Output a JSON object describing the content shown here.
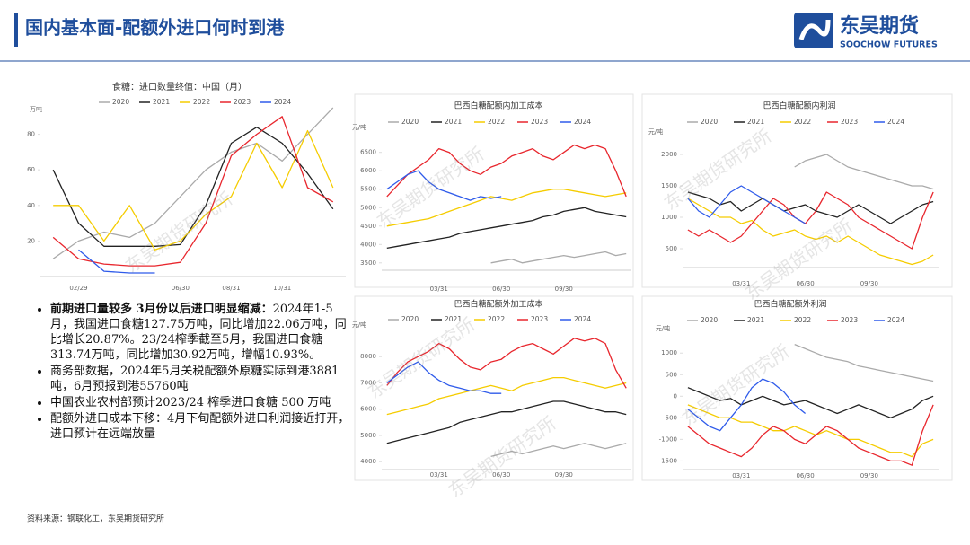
{
  "header": {
    "title": "国内基本面-配额外进口何时到港",
    "logo_cn": "东吴期货",
    "logo_en": "SOOCHOW FUTURES"
  },
  "bullets": [
    {
      "bold": "前期进口量较多 3月份以后进口明显缩减：",
      "text": "2024年1-5月，我国进口食糖127.75万吨，同比增加22.06万吨，同比增长20.87%。23/24榨季截至5月，我国进口食糖313.74万吨，同比增加30.92万吨，增幅10.93%。"
    },
    {
      "text": "商务部数据，2024年5月关税配额外原糖实际到港3881吨，6月预报到港55760吨"
    },
    {
      "text": "中国农业农村部预计2023/24 榨季进口食糖 500 万吨"
    },
    {
      "text": "配额外进口成本下移：4月下旬配额外进口利润接近打开，进口预计在远端放量"
    }
  ],
  "source": "资料来源：钢联化工，东吴期货研究所",
  "watermark": "东吴期货研究所",
  "chart_data": [
    {
      "type": "line",
      "title": "食糖：进口数量终值：中国（月）",
      "y_label": "万吨",
      "grid": false,
      "categories": [
        null,
        "02/29",
        null,
        null,
        null,
        "06/30",
        null,
        "08/31",
        null,
        "10/31",
        null,
        null
      ],
      "ylim": [
        0,
        100
      ],
      "yticks": [
        20,
        40,
        60,
        80
      ],
      "series": [
        {
          "name": "2020",
          "color": "#aaaaaa",
          "values": [
            10,
            20,
            25,
            22,
            30,
            45,
            60,
            70,
            75,
            65,
            80,
            95
          ]
        },
        {
          "name": "2021",
          "color": "#222222",
          "values": [
            60,
            30,
            17,
            17,
            17,
            18,
            40,
            75,
            84,
            75,
            58,
            38
          ]
        },
        {
          "name": "2022",
          "color": "#f5cc00",
          "values": [
            40,
            40,
            20,
            40,
            15,
            20,
            35,
            45,
            75,
            50,
            82,
            50
          ]
        },
        {
          "name": "2023",
          "color": "#e8262d",
          "values": [
            22,
            10,
            7,
            6,
            6,
            8,
            30,
            68,
            80,
            90,
            50,
            42
          ]
        },
        {
          "name": "2024",
          "color": "#2f5bea",
          "values": [
            null,
            15,
            3,
            2,
            2,
            null,
            null,
            null,
            null,
            null,
            null,
            null
          ]
        }
      ]
    },
    {
      "type": "line",
      "title": "巴西白糖配额内加工成本",
      "y_label": "元/吨",
      "grid": false,
      "categories": [
        null,
        null,
        null,
        null,
        null,
        "03/31",
        null,
        null,
        null,
        null,
        null,
        "06/30",
        null,
        null,
        null,
        null,
        null,
        "09/30",
        null,
        null,
        null,
        null,
        null,
        null
      ],
      "ylim": [
        3300,
        7200
      ],
      "yticks": [
        3500,
        4000,
        4500,
        5000,
        5500,
        6000,
        6500
      ],
      "series": [
        {
          "name": "2020",
          "color": "#aaaaaa",
          "values": [
            null,
            null,
            null,
            null,
            null,
            null,
            null,
            null,
            null,
            null,
            3500,
            3550,
            3600,
            3500,
            3550,
            3600,
            3650,
            3700,
            3650,
            3700,
            3750,
            3800,
            3700,
            3750
          ]
        },
        {
          "name": "2021",
          "color": "#222222",
          "values": [
            3900,
            3950,
            4000,
            4050,
            4100,
            4150,
            4200,
            4300,
            4350,
            4400,
            4450,
            4500,
            4550,
            4600,
            4650,
            4750,
            4800,
            4900,
            4950,
            5000,
            4900,
            4850,
            4800,
            4750
          ]
        },
        {
          "name": "2022",
          "color": "#f5cc00",
          "values": [
            4500,
            4550,
            4600,
            4650,
            4700,
            4800,
            4900,
            5000,
            5100,
            5200,
            5300,
            5250,
            5200,
            5300,
            5400,
            5450,
            5500,
            5500,
            5450,
            5400,
            5350,
            5300,
            5350,
            5400
          ]
        },
        {
          "name": "2023",
          "color": "#e8262d",
          "values": [
            5300,
            5600,
            5900,
            6100,
            6300,
            6600,
            6500,
            6200,
            6000,
            5900,
            6100,
            6200,
            6400,
            6500,
            6600,
            6400,
            6300,
            6500,
            6700,
            6600,
            6700,
            6600,
            6000,
            5300
          ]
        },
        {
          "name": "2024",
          "color": "#2f5bea",
          "values": [
            5500,
            5700,
            5900,
            6000,
            5700,
            5500,
            5400,
            5300,
            5200,
            5300,
            5250,
            5300,
            null,
            null,
            null,
            null,
            null,
            null,
            null,
            null,
            null,
            null,
            null,
            null
          ]
        }
      ]
    },
    {
      "type": "line",
      "title": "巴西白糖配额内利润",
      "y_label": "元/吨",
      "grid": false,
      "categories": [
        null,
        null,
        null,
        null,
        null,
        "03/31",
        null,
        null,
        null,
        null,
        null,
        "06/30",
        null,
        null,
        null,
        null,
        null,
        "09/30",
        null,
        null,
        null,
        null,
        null,
        null
      ],
      "ylim": [
        200,
        2300
      ],
      "yticks": [
        500,
        1000,
        1500,
        2000
      ],
      "series": [
        {
          "name": "2020",
          "color": "#aaaaaa",
          "values": [
            null,
            null,
            null,
            null,
            null,
            null,
            null,
            null,
            null,
            null,
            1800,
            1900,
            1950,
            2000,
            1900,
            1800,
            1750,
            1700,
            1650,
            1600,
            1550,
            1500,
            1500,
            1450
          ]
        },
        {
          "name": "2021",
          "color": "#222222",
          "values": [
            1400,
            1350,
            1300,
            1200,
            1250,
            1100,
            1200,
            1300,
            1200,
            1100,
            1150,
            1200,
            1100,
            1050,
            1000,
            1100,
            1200,
            1100,
            1000,
            900,
            1000,
            1100,
            1200,
            1250
          ]
        },
        {
          "name": "2022",
          "color": "#f5cc00",
          "values": [
            1300,
            1200,
            1100,
            1000,
            1000,
            900,
            950,
            800,
            700,
            750,
            800,
            700,
            650,
            700,
            600,
            700,
            600,
            500,
            400,
            350,
            300,
            250,
            300,
            400
          ]
        },
        {
          "name": "2023",
          "color": "#e8262d",
          "values": [
            800,
            700,
            800,
            700,
            600,
            700,
            900,
            1100,
            1300,
            1200,
            1000,
            900,
            1100,
            1400,
            1300,
            1200,
            1000,
            900,
            800,
            700,
            600,
            500,
            1000,
            1400
          ]
        },
        {
          "name": "2024",
          "color": "#2f5bea",
          "values": [
            1300,
            1100,
            1000,
            1200,
            1400,
            1500,
            1400,
            1300,
            1200,
            1100,
            1000,
            900,
            null,
            null,
            null,
            null,
            null,
            null,
            null,
            null,
            null,
            null,
            null,
            null
          ]
        }
      ]
    },
    {
      "type": "line",
      "title": "巴西白糖配额外加工成本",
      "y_label": "元/吨",
      "grid": false,
      "categories": [
        null,
        null,
        null,
        null,
        null,
        "03/31",
        null,
        null,
        null,
        null,
        null,
        "06/30",
        null,
        null,
        null,
        null,
        null,
        "09/30",
        null,
        null,
        null,
        null,
        null,
        null
      ],
      "ylim": [
        3700,
        9000
      ],
      "yticks": [
        4000,
        5000,
        6000,
        7000,
        8000
      ],
      "series": [
        {
          "name": "2020",
          "color": "#aaaaaa",
          "values": [
            null,
            null,
            null,
            null,
            null,
            null,
            null,
            null,
            null,
            null,
            4200,
            4300,
            4400,
            4300,
            4400,
            4500,
            4600,
            4500,
            4600,
            4700,
            4600,
            4500,
            4600,
            4700
          ]
        },
        {
          "name": "2021",
          "color": "#222222",
          "values": [
            4700,
            4800,
            4900,
            5000,
            5100,
            5200,
            5300,
            5500,
            5600,
            5700,
            5800,
            5900,
            5900,
            6000,
            6100,
            6200,
            6300,
            6300,
            6200,
            6100,
            6000,
            5900,
            5900,
            5800
          ]
        },
        {
          "name": "2022",
          "color": "#f5cc00",
          "values": [
            5800,
            5900,
            6000,
            6100,
            6200,
            6400,
            6500,
            6600,
            6700,
            6800,
            6900,
            6800,
            6700,
            6900,
            7000,
            7100,
            7200,
            7200,
            7100,
            7000,
            6900,
            6800,
            6900,
            7000
          ]
        },
        {
          "name": "2023",
          "color": "#e8262d",
          "values": [
            6900,
            7400,
            7800,
            8000,
            8200,
            8500,
            8300,
            7900,
            7600,
            7500,
            7800,
            7900,
            8200,
            8400,
            8500,
            8300,
            8100,
            8400,
            8700,
            8600,
            8700,
            8500,
            7500,
            6800
          ]
        },
        {
          "name": "2024",
          "color": "#2f5bea",
          "values": [
            7000,
            7300,
            7600,
            7800,
            7400,
            7100,
            6900,
            6800,
            6700,
            6700,
            6600,
            6600,
            null,
            null,
            null,
            null,
            null,
            null,
            null,
            null,
            null,
            null,
            null,
            null
          ]
        }
      ]
    },
    {
      "type": "line",
      "title": "巴西白糖配额外利润",
      "y_label": "元/吨",
      "grid": false,
      "categories": [
        null,
        null,
        null,
        null,
        null,
        "03/31",
        null,
        null,
        null,
        null,
        null,
        "06/30",
        null,
        null,
        null,
        null,
        null,
        "09/30",
        null,
        null,
        null,
        null,
        null,
        null
      ],
      "ylim": [
        -1700,
        1400
      ],
      "yticks": [
        -1500,
        -1000,
        -500,
        0,
        500,
        1000
      ],
      "series": [
        {
          "name": "2020",
          "color": "#aaaaaa",
          "values": [
            null,
            null,
            null,
            null,
            null,
            null,
            null,
            null,
            null,
            null,
            1200,
            1100,
            1000,
            900,
            850,
            800,
            700,
            650,
            600,
            550,
            500,
            450,
            400,
            350
          ]
        },
        {
          "name": "2021",
          "color": "#222222",
          "values": [
            200,
            100,
            0,
            -100,
            -50,
            -200,
            -100,
            0,
            -100,
            -200,
            -150,
            -100,
            -200,
            -300,
            -400,
            -300,
            -200,
            -300,
            -400,
            -500,
            -400,
            -300,
            -100,
            0
          ]
        },
        {
          "name": "2022",
          "color": "#f5cc00",
          "values": [
            -200,
            -300,
            -400,
            -500,
            -500,
            -600,
            -600,
            -700,
            -800,
            -800,
            -700,
            -800,
            -900,
            -800,
            -900,
            -1000,
            -1000,
            -1100,
            -1200,
            -1300,
            -1300,
            -1400,
            -1100,
            -1000
          ]
        },
        {
          "name": "2023",
          "color": "#e8262d",
          "values": [
            -700,
            -900,
            -1100,
            -1200,
            -1300,
            -1400,
            -1200,
            -900,
            -700,
            -800,
            -1000,
            -1100,
            -900,
            -700,
            -800,
            -1000,
            -1200,
            -1300,
            -1400,
            -1500,
            -1500,
            -1600,
            -800,
            -200
          ]
        },
        {
          "name": "2024",
          "color": "#2f5bea",
          "values": [
            -300,
            -500,
            -700,
            -800,
            -500,
            -200,
            200,
            400,
            300,
            100,
            -200,
            -400,
            null,
            null,
            null,
            null,
            null,
            null,
            null,
            null,
            null,
            null,
            null,
            null
          ]
        }
      ]
    }
  ]
}
